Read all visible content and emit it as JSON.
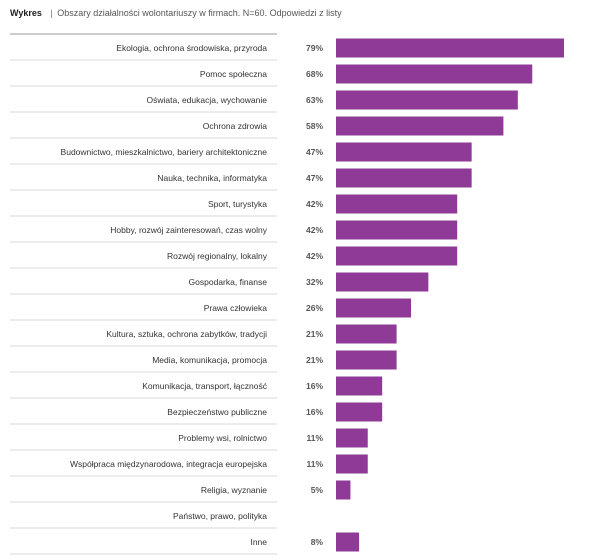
{
  "header": {
    "label": "Wykres",
    "separator": "|",
    "description": "Obszary działalności wolontariuszy w firmach. N=60. Odpowiedzi z listy"
  },
  "colors": {
    "bar": "#8e3a96",
    "row_line": "#d9d9d9",
    "top_line": "#9a9a9a",
    "text": "#333333",
    "value_text": "#555555"
  },
  "chart_data": {
    "type": "bar",
    "orientation": "horizontal",
    "title": "Obszary działalności wolontariuszy w firmach. N=60. Odpowiedzi z listy",
    "xlim": [
      0,
      85
    ],
    "grid": false,
    "categories": [
      "Ekologia, ochrona środowiska, przyroda",
      "Pomoc społeczna",
      "Oświata, edukacja, wychowanie",
      "Ochrona zdrowia",
      "Budownictwo, mieszkalnictwo, bariery architektoniczne",
      "Nauka, technika, informatyka",
      "Sport, turystyka",
      "Hobby, rozwój zainteresowań, czas wolny",
      "Rozwój regionalny, lokalny",
      "Gospodarka, finanse",
      "Prawa człowieka",
      "Kultura, sztuka, ochrona zabytków, tradycji",
      "Media, komunikacja, promocja",
      "Komunikacja, transport, łączność",
      "Bezpieczeństwo publiczne",
      "Problemy wsi, rolnictwo",
      "Współpraca międzynarodowa, integracja europejska",
      "Religia, wyznanie",
      "Państwo, prawo, polityka",
      "Inne"
    ],
    "values": [
      79,
      68,
      63,
      58,
      47,
      47,
      42,
      42,
      42,
      32,
      26,
      21,
      21,
      16,
      16,
      11,
      11,
      5,
      null,
      8
    ],
    "value_labels": [
      "79%",
      "68%",
      "63%",
      "58%",
      "47%",
      "47%",
      "42%",
      "42%",
      "42%",
      "32%",
      "26%",
      "21%",
      "21%",
      "16%",
      "16%",
      "11%",
      "11%",
      "5%",
      "",
      "8%"
    ]
  }
}
